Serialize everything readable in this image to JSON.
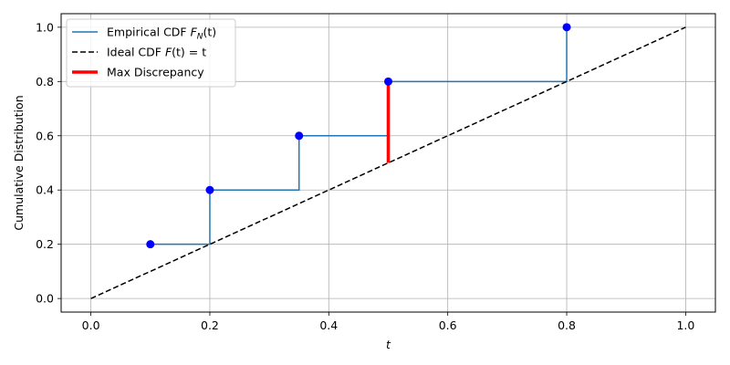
{
  "chart_data": {
    "type": "line",
    "title": "",
    "xlabel": "t",
    "ylabel": "Cumulative Distribution",
    "xlim": [
      -0.05,
      1.05
    ],
    "ylim": [
      -0.05,
      1.05
    ],
    "x_ticks": [
      0.0,
      0.2,
      0.4,
      0.6,
      0.8,
      1.0
    ],
    "y_ticks": [
      0.0,
      0.2,
      0.4,
      0.6,
      0.8,
      1.0
    ],
    "x_tick_labels": [
      "0.0",
      "0.2",
      "0.4",
      "0.6",
      "0.8",
      "1.0"
    ],
    "y_tick_labels": [
      "0.0",
      "0.2",
      "0.4",
      "0.6",
      "0.8",
      "1.0"
    ],
    "grid": true,
    "legend_position": "top-left",
    "series": [
      {
        "name": "Empirical CDF F_N(t)",
        "kind": "step",
        "color": "#1f77b4",
        "x": [
          0.1,
          0.2,
          0.35,
          0.5,
          0.8
        ],
        "y": [
          0.2,
          0.4,
          0.6,
          0.8,
          1.0
        ]
      },
      {
        "name": "Ideal CDF F(t) = t",
        "kind": "dashed",
        "color": "#000000",
        "x": [
          0.0,
          1.0
        ],
        "y": [
          0.0,
          1.0
        ]
      },
      {
        "name": "Max Discrepancy",
        "kind": "segment",
        "color": "#ff0000",
        "x": [
          0.5,
          0.5
        ],
        "y": [
          0.5,
          0.8
        ]
      }
    ],
    "points": {
      "color": "#0000ff",
      "x": [
        0.1,
        0.2,
        0.35,
        0.5,
        0.8
      ],
      "y": [
        0.2,
        0.4,
        0.6,
        0.8,
        1.0
      ]
    },
    "legend": [
      {
        "prefix": "Empirical CDF ",
        "math_main": "F",
        "math_sub": "N",
        "math_tail": "(t)",
        "color": "#1f77b4",
        "style": "solid"
      },
      {
        "prefix": "Ideal CDF ",
        "math_main": "F",
        "math_sub": "",
        "math_tail": "(t) = t",
        "color": "#000000",
        "style": "dashed"
      },
      {
        "prefix": "Max Discrepancy",
        "math_main": "",
        "math_sub": "",
        "math_tail": "",
        "color": "#ff0000",
        "style": "thick"
      }
    ]
  }
}
